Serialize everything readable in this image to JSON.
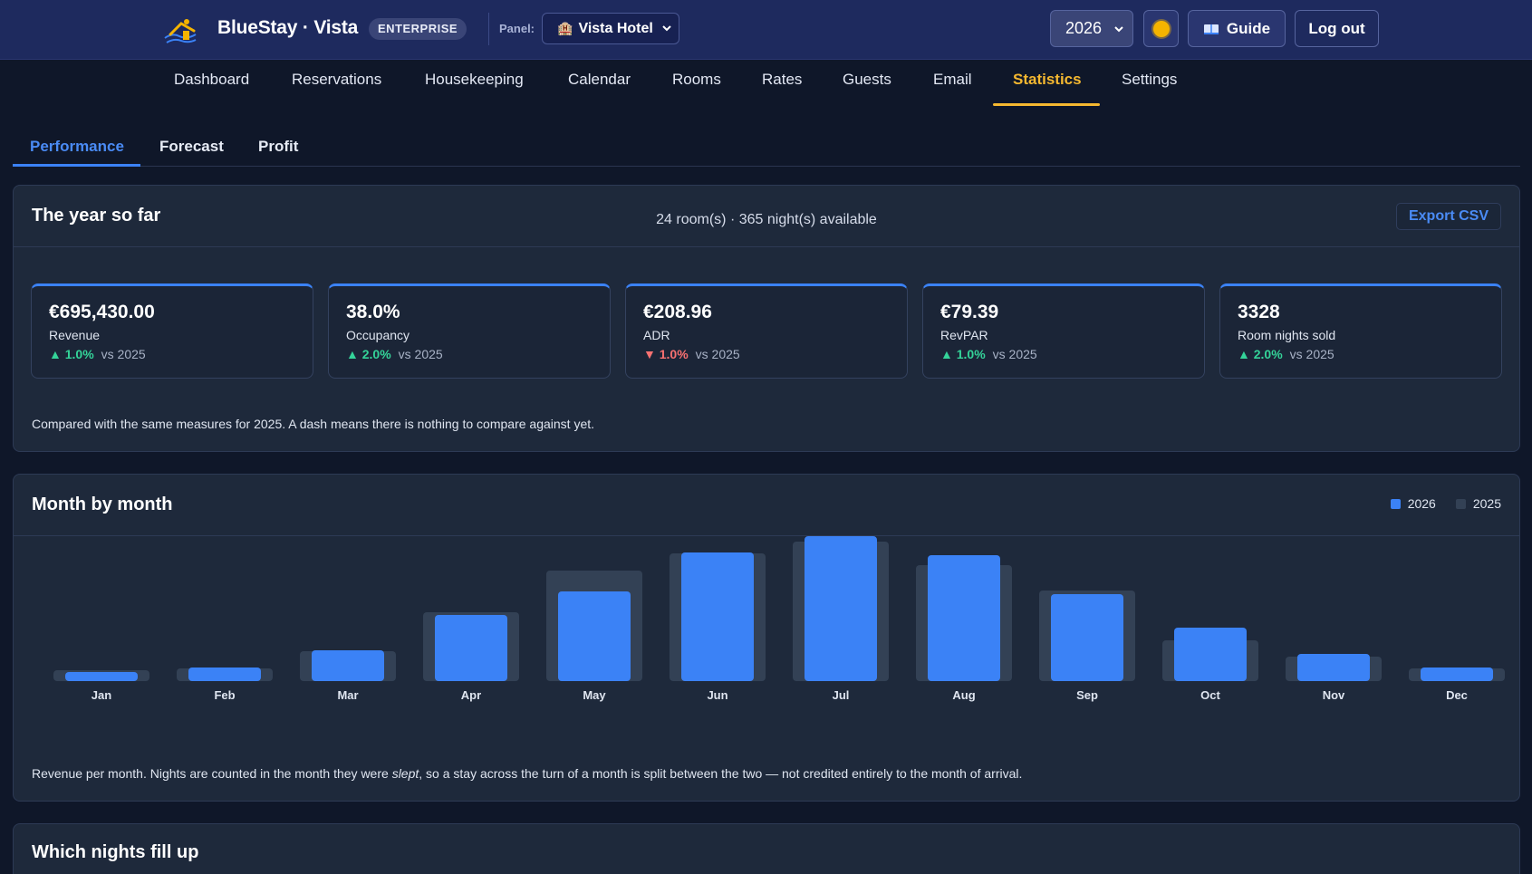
{
  "header": {
    "brand_name": "BlueStay · Vista",
    "badge": "ENTERPRISE",
    "panel_label": "Panel:",
    "panel_value": "Vista Hotel",
    "year": "2026",
    "guide_label": "Guide",
    "logout_label": "Log out"
  },
  "nav": {
    "items": [
      "Dashboard",
      "Reservations",
      "Housekeeping",
      "Calendar",
      "Rooms",
      "Rates",
      "Guests",
      "Email",
      "Statistics",
      "Settings"
    ],
    "active": "Statistics"
  },
  "subtabs": {
    "items": [
      "Performance",
      "Forecast",
      "Profit"
    ],
    "active": "Performance"
  },
  "year_card": {
    "title": "The year so far",
    "availability": "24 room(s) · 365 night(s) available",
    "export_label": "Export CSV",
    "kpis": [
      {
        "value": "€695,430.00",
        "label": "Revenue",
        "direction": "up",
        "change": "1.0%",
        "vs": "vs 2025"
      },
      {
        "value": "38.0%",
        "label": "Occupancy",
        "direction": "up",
        "change": "2.0%",
        "vs": "vs 2025"
      },
      {
        "value": "€208.96",
        "label": "ADR",
        "direction": "down",
        "change": "1.0%",
        "vs": "vs 2025"
      },
      {
        "value": "€79.39",
        "label": "RevPAR",
        "direction": "up",
        "change": "1.0%",
        "vs": "vs 2025"
      },
      {
        "value": "3328",
        "label": "Room nights sold",
        "direction": "up",
        "change": "2.0%",
        "vs": "vs 2025"
      }
    ],
    "note": "Compared with the same measures for 2025. A dash means there is nothing to compare against yet."
  },
  "month_card": {
    "title": "Month by month",
    "note_before": "Revenue per month. Nights are counted in the month they were ",
    "note_emphasis": "slept",
    "note_after": ", so a stay across the turn of a month is split between the two — not credited entirely to the month of arrival."
  },
  "fill_card": {
    "title": "Which nights fill up"
  },
  "colors": {
    "accent": "#3b82f6",
    "nav_active": "#f5b830",
    "up": "#34d399",
    "down": "#f87171",
    "prev_year_bar": "#334155"
  },
  "chart_data": {
    "type": "bar",
    "categories": [
      "Jan",
      "Feb",
      "Mar",
      "Apr",
      "May",
      "Jun",
      "Jul",
      "Aug",
      "Sep",
      "Oct",
      "Nov",
      "Dec"
    ],
    "series": [
      {
        "name": "2026",
        "color": "#3b82f6",
        "values": [
          10,
          15,
          34,
          73,
          99,
          142,
          160,
          139,
          96,
          59,
          30,
          15
        ]
      },
      {
        "name": "2025",
        "color": "#334155",
        "values": [
          12,
          14,
          33,
          76,
          122,
          141,
          154,
          128,
          100,
          45,
          27,
          14
        ]
      }
    ],
    "ylim": [
      0,
      160
    ],
    "grid": false,
    "legend": "top-right"
  }
}
